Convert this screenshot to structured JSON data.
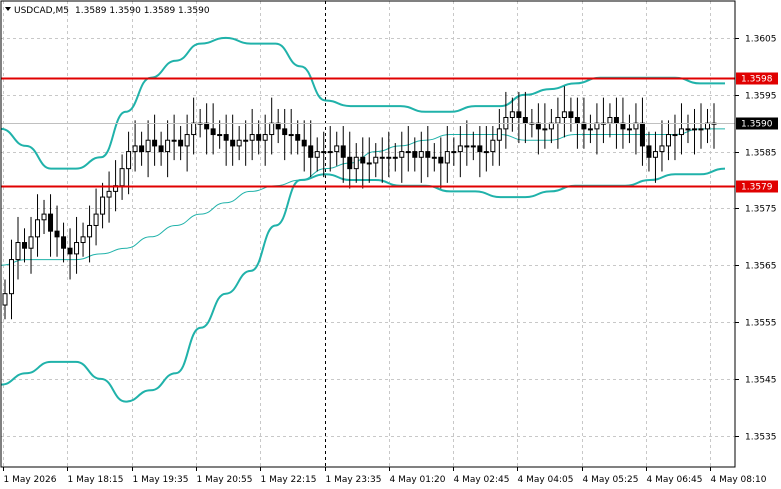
{
  "chart_title": {
    "symbol_tf": "USDCAD,M5",
    "ohlc": "1.3589 1.3590 1.3589 1.3590"
  },
  "colors": {
    "background": "#ffffff",
    "grid": "#c8c8c8",
    "candle": "#000000",
    "bands": "#20b2aa",
    "resistance": "#e00000",
    "support": "#e00000",
    "price_tag_red": "#e00000",
    "price_tag_black": "#000000",
    "current_line": "#c0c0c0"
  },
  "chart_data": {
    "type": "candlestick",
    "x_labels": [
      "1 May 2026",
      "1 May 18:15",
      "1 May 19:35",
      "1 May 20:55",
      "1 May 22:15",
      "1 May 23:35",
      "4 May 01:20",
      "4 May 02:45",
      "4 May 04:05",
      "4 May 05:25",
      "4 May 06:45",
      "4 May 08:10"
    ],
    "y_ticks": [
      1.3535,
      1.3545,
      1.3555,
      1.3565,
      1.3575,
      1.3585,
      1.3595,
      1.3605
    ],
    "y_range": [
      1.35295,
      1.36115
    ],
    "grid": true,
    "separator_at_label": "1 May 23:35",
    "levels": {
      "resistance": {
        "value": 1.3598,
        "label": "1.3598"
      },
      "support": {
        "value": 1.3579,
        "label": "1.3579"
      },
      "current": {
        "value": 1.359,
        "label": "1.3590"
      }
    },
    "closes": [
      1.356,
      1.3566,
      1.3569,
      1.3568,
      1.357,
      1.3573,
      1.3574,
      1.3571,
      1.357,
      1.3568,
      1.3567,
      1.3569,
      1.357,
      1.3572,
      1.3574,
      1.3577,
      1.3578,
      1.3579,
      1.3582,
      1.3585,
      1.3586,
      1.3585,
      1.3587,
      1.3586,
      1.3585,
      1.3587,
      1.3587,
      1.3586,
      1.3588,
      1.359,
      1.359,
      1.3589,
      1.3588,
      1.3588,
      1.3587,
      1.3586,
      1.3587,
      1.3587,
      1.3588,
      1.3587,
      1.3588,
      1.359,
      1.3589,
      1.3588,
      1.3588,
      1.3587,
      1.3586,
      1.3584,
      1.3585,
      1.3585,
      1.3585,
      1.3586,
      1.3584,
      1.3582,
      1.3584,
      1.3583,
      1.3583,
      1.3584,
      1.3584,
      1.3584,
      1.3584,
      1.3585,
      1.3585,
      1.3584,
      1.3585,
      1.3584,
      1.3584,
      1.3583,
      1.3585,
      1.3585,
      1.3586,
      1.3586,
      1.3586,
      1.3585,
      1.3585,
      1.3587,
      1.3589,
      1.3591,
      1.3592,
      1.3591,
      1.359,
      1.359,
      1.3589,
      1.3589,
      1.359,
      1.3591,
      1.3592,
      1.3591,
      1.359,
      1.3589,
      1.3589,
      1.359,
      1.359,
      1.3591,
      1.359,
      1.3589,
      1.3589,
      1.359,
      1.3586,
      1.3584,
      1.3585,
      1.3586,
      1.3588,
      1.3588,
      1.3589,
      1.3589,
      1.3589,
      1.3589,
      1.359,
      1.359
    ],
    "bollinger": {
      "middle": [
        1.3565,
        1.3566,
        1.3566,
        1.3566,
        1.3567,
        1.3568,
        1.357,
        1.3572,
        1.3574,
        1.3576,
        1.3578,
        1.3579,
        1.358,
        1.3582,
        1.3583,
        1.3585,
        1.3586,
        1.3587,
        1.3588,
        1.3588,
        1.3588,
        1.3587,
        1.3587,
        1.3588,
        1.3588,
        1.3588,
        1.3588,
        1.3588,
        1.3589,
        1.3589
      ],
      "upper": [
        1.3589,
        1.3586,
        1.3582,
        1.3582,
        1.3584,
        1.3592,
        1.3598,
        1.3601,
        1.3604,
        1.3605,
        1.3604,
        1.3604,
        1.36,
        1.3594,
        1.3593,
        1.3593,
        1.3593,
        1.3592,
        1.3592,
        1.3593,
        1.3593,
        1.3595,
        1.3596,
        1.3597,
        1.3598,
        1.3598,
        1.3598,
        1.3598,
        1.3597,
        1.3597
      ],
      "lower": [
        1.3544,
        1.3546,
        1.3548,
        1.3548,
        1.3545,
        1.3541,
        1.3543,
        1.3546,
        1.3554,
        1.356,
        1.3564,
        1.3572,
        1.358,
        1.3581,
        1.358,
        1.358,
        1.3579,
        1.3579,
        1.3578,
        1.3578,
        1.3577,
        1.3577,
        1.3578,
        1.3579,
        1.3579,
        1.3579,
        1.358,
        1.3581,
        1.3581,
        1.3582
      ]
    }
  }
}
